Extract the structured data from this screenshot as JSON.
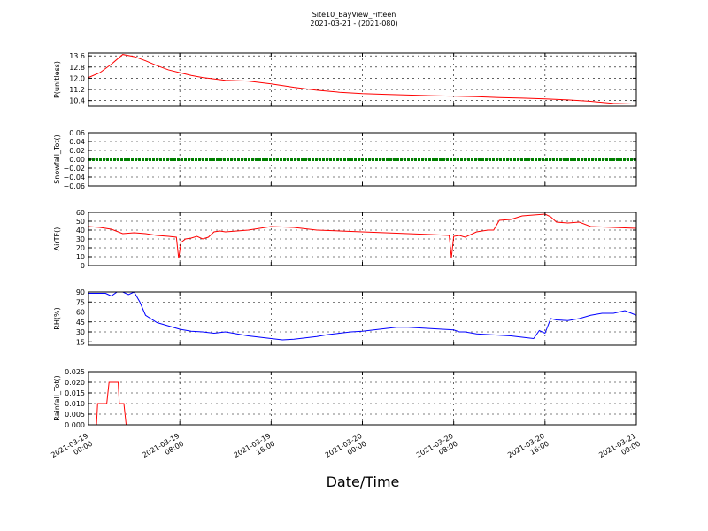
{
  "figure": {
    "title_line1": "Site10_BayView_Fifteen",
    "title_line2": "2021-03-21 - (2021-080)",
    "xlabel": "Date/Time"
  },
  "chart_data": [
    {
      "type": "line",
      "ylabel": "P(unitless)",
      "color": "#ff0000",
      "ylim": [
        10.0,
        13.8
      ],
      "yticks": [
        10.4,
        11.2,
        12.0,
        12.8,
        13.6
      ],
      "ytick_labels": [
        "10.4",
        "11.2",
        "12.0",
        "12.8",
        "13.6"
      ],
      "x": [
        0,
        1,
        2,
        3,
        4,
        5,
        6,
        7,
        8,
        9,
        10,
        12,
        14,
        16,
        18,
        20,
        22,
        24,
        26,
        28,
        30,
        32,
        34,
        36,
        38,
        40,
        42,
        44,
        46,
        48
      ],
      "y": [
        12.05,
        12.4,
        13.0,
        13.7,
        13.55,
        13.25,
        12.9,
        12.6,
        12.4,
        12.2,
        12.05,
        11.85,
        11.8,
        11.6,
        11.35,
        11.15,
        11.0,
        10.9,
        10.85,
        10.8,
        10.75,
        10.72,
        10.68,
        10.62,
        10.58,
        10.52,
        10.45,
        10.35,
        10.2,
        10.15
      ]
    },
    {
      "type": "line",
      "ylabel": "Snowfall_Tot()",
      "color": "#008000",
      "ylim": [
        -0.06,
        0.06
      ],
      "yticks": [
        -0.06,
        -0.04,
        -0.02,
        0.0,
        0.02,
        0.04,
        0.06
      ],
      "ytick_labels": [
        "−0.06",
        "−0.04",
        "−0.02",
        "0.00",
        "0.02",
        "0.04",
        "0.06"
      ],
      "x": [
        0,
        48
      ],
      "y": [
        0.0,
        0.0
      ]
    },
    {
      "type": "line",
      "ylabel": "AirTF()",
      "color": "#ff0000",
      "ylim": [
        0,
        60
      ],
      "yticks": [
        0,
        10,
        20,
        30,
        40,
        50,
        60
      ],
      "ytick_labels": [
        "0",
        "10",
        "20",
        "30",
        "40",
        "50",
        "60"
      ],
      "x": [
        0,
        1,
        2,
        3,
        4,
        5,
        6,
        7,
        7.7,
        7.9,
        8.1,
        8.5,
        9,
        9.5,
        10,
        10.5,
        11,
        11.5,
        12,
        14,
        16,
        18,
        20,
        22,
        24,
        26,
        28,
        30,
        31.6,
        31.8,
        32,
        32.5,
        33,
        34,
        35,
        35.5,
        36,
        37,
        38,
        39,
        40,
        40.5,
        41,
        42,
        43,
        44,
        46,
        48
      ],
      "y": [
        44,
        43,
        41,
        36,
        37,
        36,
        34,
        33,
        32,
        8,
        26,
        30,
        31,
        33,
        30,
        32,
        38,
        39,
        38,
        40,
        44,
        43,
        40,
        39,
        38,
        37,
        36,
        35,
        34,
        9,
        33,
        34,
        32,
        38,
        40,
        40,
        51,
        52,
        56,
        57,
        58,
        55,
        49,
        48,
        49,
        44,
        43,
        42
      ]
    },
    {
      "type": "line",
      "ylabel": "RH(%)",
      "color": "#0000ff",
      "ylim": [
        10,
        90
      ],
      "yticks": [
        15,
        30,
        45,
        60,
        75,
        90
      ],
      "ytick_labels": [
        "15",
        "30",
        "45",
        "60",
        "75",
        "90"
      ],
      "x": [
        0,
        1,
        1.5,
        2,
        2.5,
        3,
        3.5,
        4,
        4.5,
        5,
        6,
        7,
        8,
        9,
        10,
        11,
        12,
        13,
        14,
        15,
        16,
        17,
        18,
        19,
        20,
        21,
        22,
        23,
        24,
        25,
        26,
        27,
        28,
        29,
        30,
        31,
        32,
        32.5,
        33,
        34,
        35,
        36,
        37,
        38,
        39,
        39.5,
        40,
        40.5,
        41,
        42,
        43,
        44,
        45,
        46,
        47,
        48
      ],
      "y": [
        88,
        88,
        88,
        84,
        90,
        90,
        86,
        90,
        75,
        55,
        44,
        39,
        34,
        31,
        30,
        28,
        30,
        27,
        24,
        22,
        20,
        18,
        19,
        21,
        23,
        26,
        28,
        30,
        31,
        33,
        35,
        37,
        37,
        36,
        35,
        34,
        33,
        30,
        30,
        27,
        26,
        25,
        24,
        22,
        20,
        32,
        28,
        50,
        48,
        47,
        50,
        55,
        58,
        58,
        62,
        55
      ]
    },
    {
      "type": "line",
      "ylabel": "Rainfall_Tot()",
      "color": "#ff0000",
      "ylim": [
        0,
        0.025
      ],
      "yticks": [
        0.0,
        0.005,
        0.01,
        0.015,
        0.02,
        0.025
      ],
      "ytick_labels": [
        "0.000",
        "0.005",
        "0.010",
        "0.015",
        "0.020",
        "0.025"
      ],
      "x": [
        0,
        0.7,
        0.8,
        1.6,
        1.8,
        2.6,
        2.7,
        3.1,
        3.3,
        48
      ],
      "y": [
        0,
        0,
        0.01,
        0.01,
        0.02,
        0.02,
        0.01,
        0.01,
        0,
        0
      ]
    }
  ],
  "x_axis": {
    "range": [
      0,
      48
    ],
    "ticks": [
      0,
      8,
      16,
      24,
      32,
      40,
      48
    ],
    "tick_labels": [
      [
        "2021-03-19",
        "00:00"
      ],
      [
        "2021-03-19",
        "08:00"
      ],
      [
        "2021-03-19",
        "16:00"
      ],
      [
        "2021-03-20",
        "00:00"
      ],
      [
        "2021-03-20",
        "08:00"
      ],
      [
        "2021-03-20",
        "16:00"
      ],
      [
        "2021-03-21",
        "00:00"
      ]
    ]
  }
}
